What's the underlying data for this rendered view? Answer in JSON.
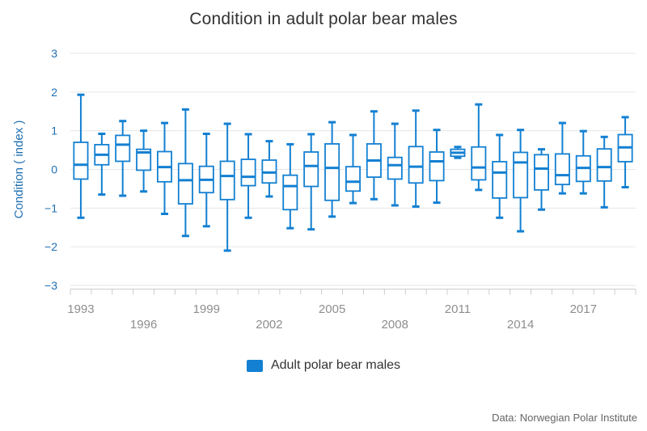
{
  "title": "Condition in adult polar bear males",
  "legend": {
    "label": "Adult polar bear males",
    "color": "#1380d2"
  },
  "credits": "Data: Norwegian Polar Institute",
  "colors": {
    "series": "#1380d2",
    "gridline": "#e6e6e6",
    "axis_line": "#cccccc",
    "y_label": "#1f6fb2",
    "x_label": "#8e8e8e",
    "title": "#333333",
    "box_fill": "#ffffff"
  },
  "chart_data": {
    "type": "boxplot",
    "title": "Condition in adult polar bear males",
    "xlabel": "",
    "ylabel": "Condition ( index )",
    "ylim": [
      -3,
      3
    ],
    "y_ticks": [
      3,
      2,
      1,
      0,
      -1,
      -2,
      -3
    ],
    "grid": true,
    "legend_position": "bottom",
    "x_labeled_years": [
      1993,
      1996,
      1999,
      2002,
      2005,
      2008,
      2011,
      2014,
      2017
    ],
    "categories": [
      1993,
      1994,
      1995,
      1996,
      1997,
      1998,
      1999,
      2000,
      2001,
      2002,
      2003,
      2004,
      2005,
      2006,
      2007,
      2008,
      2009,
      2010,
      2011,
      2012,
      2013,
      2014,
      2015,
      2016,
      2017,
      2018,
      2019
    ],
    "series": [
      {
        "name": "Adult polar bear males",
        "color": "#1380d2",
        "points": [
          {
            "year": 1993,
            "low": -1.25,
            "q1": -0.25,
            "median": 0.12,
            "q3": 0.7,
            "high": 1.93
          },
          {
            "year": 1994,
            "low": -0.65,
            "q1": 0.12,
            "median": 0.38,
            "q3": 0.64,
            "high": 0.92
          },
          {
            "year": 1995,
            "low": -0.68,
            "q1": 0.21,
            "median": 0.64,
            "q3": 0.88,
            "high": 1.25
          },
          {
            "year": 1996,
            "low": -0.57,
            "q1": -0.02,
            "median": 0.44,
            "q3": 0.52,
            "high": 1.0
          },
          {
            "year": 1997,
            "low": -1.15,
            "q1": -0.32,
            "median": 0.06,
            "q3": 0.46,
            "high": 1.2
          },
          {
            "year": 1998,
            "low": -1.72,
            "q1": -0.89,
            "median": -0.28,
            "q3": 0.15,
            "high": 1.55
          },
          {
            "year": 1999,
            "low": -1.47,
            "q1": -0.6,
            "median": -0.27,
            "q3": 0.08,
            "high": 0.92
          },
          {
            "year": 2000,
            "low": -2.1,
            "q1": -0.78,
            "median": -0.17,
            "q3": 0.21,
            "high": 1.18
          },
          {
            "year": 2001,
            "low": -1.25,
            "q1": -0.42,
            "median": -0.19,
            "q3": 0.26,
            "high": 0.91
          },
          {
            "year": 2002,
            "low": -0.7,
            "q1": -0.35,
            "median": -0.08,
            "q3": 0.24,
            "high": 0.73
          },
          {
            "year": 2003,
            "low": -1.52,
            "q1": -1.04,
            "median": -0.43,
            "q3": -0.15,
            "high": 0.65
          },
          {
            "year": 2004,
            "low": -1.55,
            "q1": -0.44,
            "median": 0.09,
            "q3": 0.45,
            "high": 0.91
          },
          {
            "year": 2005,
            "low": -1.22,
            "q1": -0.8,
            "median": 0.04,
            "q3": 0.66,
            "high": 1.22
          },
          {
            "year": 2006,
            "low": -0.87,
            "q1": -0.56,
            "median": -0.32,
            "q3": 0.07,
            "high": 0.89
          },
          {
            "year": 2007,
            "low": -0.77,
            "q1": -0.2,
            "median": 0.23,
            "q3": 0.66,
            "high": 1.5
          },
          {
            "year": 2008,
            "low": -0.93,
            "q1": -0.25,
            "median": 0.11,
            "q3": 0.31,
            "high": 1.18
          },
          {
            "year": 2009,
            "low": -0.96,
            "q1": -0.35,
            "median": 0.07,
            "q3": 0.59,
            "high": 1.52
          },
          {
            "year": 2010,
            "low": -0.86,
            "q1": -0.29,
            "median": 0.21,
            "q3": 0.45,
            "high": 1.02
          },
          {
            "year": 2011,
            "low": 0.3,
            "q1": 0.34,
            "median": 0.43,
            "q3": 0.52,
            "high": 0.58
          },
          {
            "year": 2012,
            "low": -0.53,
            "q1": -0.27,
            "median": 0.05,
            "q3": 0.58,
            "high": 1.68
          },
          {
            "year": 2013,
            "low": -1.25,
            "q1": -0.74,
            "median": -0.08,
            "q3": 0.2,
            "high": 0.89
          },
          {
            "year": 2014,
            "low": -1.6,
            "q1": -0.73,
            "median": 0.18,
            "q3": 0.44,
            "high": 1.02
          },
          {
            "year": 2015,
            "low": -1.04,
            "q1": -0.53,
            "median": 0.02,
            "q3": 0.38,
            "high": 0.52
          },
          {
            "year": 2016,
            "low": -0.62,
            "q1": -0.39,
            "median": -0.15,
            "q3": 0.4,
            "high": 1.2
          },
          {
            "year": 2017,
            "low": -0.62,
            "q1": -0.31,
            "median": 0.04,
            "q3": 0.35,
            "high": 0.99
          },
          {
            "year": 2018,
            "low": -0.98,
            "q1": -0.3,
            "median": 0.06,
            "q3": 0.53,
            "high": 0.84
          },
          {
            "year": 2019,
            "low": -0.46,
            "q1": 0.2,
            "median": 0.57,
            "q3": 0.9,
            "high": 1.35
          }
        ]
      }
    ]
  }
}
